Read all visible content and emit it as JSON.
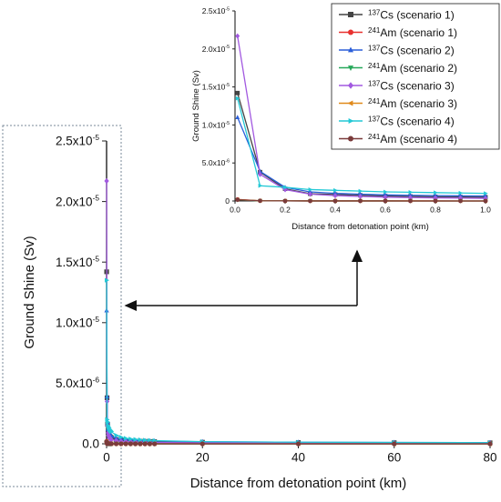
{
  "chart_data": [
    {
      "type": "line",
      "xlabel": "Distance from detonation point (km)",
      "ylabel": "Ground Shine (Sv)",
      "xlim": [
        0,
        80
      ],
      "ylim": [
        0,
        2.5e-05
      ],
      "xticks": [
        "0",
        "20",
        "40",
        "60",
        "80"
      ],
      "yticks": [
        "0.0",
        "5.0x10",
        "1.0x10",
        "1.5x10",
        "2.0x10",
        "2.5x10"
      ],
      "ytick_exp": [
        "",
        "-6",
        "-5",
        "-5",
        "-5",
        "-5"
      ],
      "x": [
        0.01,
        0.1,
        0.2,
        0.3,
        0.4,
        0.5,
        0.6,
        0.7,
        0.8,
        0.9,
        1,
        2,
        3,
        4,
        5,
        6,
        7,
        8,
        9,
        10,
        20,
        40,
        60,
        80
      ],
      "series": [
        {
          "name": "Cs (scenario 1)",
          "iso": "137",
          "color": "#444444",
          "marker": "square",
          "values": [
            1.42e-05,
            3.8e-06,
            1.6e-06,
            9.5e-07,
            8.5e-07,
            7.5e-07,
            6.5e-07,
            6e-07,
            5.5e-07,
            5.2e-07,
            5e-07,
            3.5e-07,
            3e-07,
            2.6e-07,
            2.4e-07,
            2.2e-07,
            2.1e-07,
            2e-07,
            1.9e-07,
            1.8e-07,
            1.3e-07,
            1e-07,
            9e-08,
            8e-08
          ]
        },
        {
          "name": "Am (scenario 1)",
          "iso": "241",
          "color": "#e8312f",
          "marker": "circle",
          "values": [
            2e-07,
            3e-08,
            1.5e-08,
            1e-08,
            8e-09,
            7e-09,
            6e-09,
            5e-09,
            5e-09,
            4e-09,
            4e-09,
            3e-09,
            2e-09,
            2e-09,
            2e-09,
            2e-09,
            1e-09,
            1e-09,
            1e-09,
            1e-09,
            1e-09,
            1e-09,
            1e-09,
            1e-09
          ]
        },
        {
          "name": "Cs (scenario 2)",
          "iso": "137",
          "color": "#2b5fd9",
          "marker": "triangle-up",
          "values": [
            1.1e-05,
            3.9e-06,
            1.8e-06,
            1.2e-06,
            1e-06,
            9e-07,
            8e-07,
            7.5e-07,
            7e-07,
            6.8e-07,
            6.5e-07,
            4.5e-07,
            3.8e-07,
            3.3e-07,
            3e-07,
            2.8e-07,
            2.6e-07,
            2.5e-07,
            2.4e-07,
            2.3e-07,
            1.7e-07,
            1.3e-07,
            1.1e-07,
            1e-07
          ]
        },
        {
          "name": "Am (scenario 2)",
          "iso": "241",
          "color": "#27a85a",
          "marker": "triangle-down",
          "values": [
            1.5e-07,
            2.5e-08,
            1.2e-08,
            8e-09,
            7e-09,
            6e-09,
            5e-09,
            4e-09,
            4e-09,
            3e-09,
            3e-09,
            2e-09,
            2e-09,
            2e-09,
            1e-09,
            1e-09,
            1e-09,
            1e-09,
            1e-09,
            1e-09,
            1e-09,
            1e-09,
            1e-09,
            1e-09
          ]
        },
        {
          "name": "Cs (scenario 3)",
          "iso": "137",
          "color": "#a259e0",
          "marker": "diamond",
          "values": [
            2.17e-05,
            3.5e-06,
            1.5e-06,
            9e-07,
            7e-07,
            6e-07,
            5e-07,
            4.5e-07,
            4e-07,
            3.8e-07,
            3.5e-07,
            2.5e-07,
            2e-07,
            1.8e-07,
            1.6e-07,
            1.5e-07,
            1.4e-07,
            1.3e-07,
            1.2e-07,
            1.1e-07,
            8e-08,
            6e-08,
            5e-08,
            4e-08
          ]
        },
        {
          "name": "Am (scenario 3)",
          "iso": "241",
          "color": "#e0891a",
          "marker": "triangle-left",
          "values": [
            1.8e-07,
            2.8e-08,
            1.3e-08,
            9e-09,
            7e-09,
            6e-09,
            5e-09,
            5e-09,
            4e-09,
            4e-09,
            3e-09,
            2e-09,
            2e-09,
            2e-09,
            1e-09,
            1e-09,
            1e-09,
            1e-09,
            1e-09,
            1e-09,
            1e-09,
            1e-09,
            1e-09,
            1e-09
          ]
        },
        {
          "name": "Cs (scenario 4)",
          "iso": "137",
          "color": "#23c9d6",
          "marker": "triangle-right",
          "values": [
            1.35e-05,
            2e-06,
            1.8e-06,
            1.5e-06,
            1.4e-06,
            1.3e-06,
            1.2e-06,
            1.15e-06,
            1.1e-06,
            1.05e-06,
            1e-06,
            7e-07,
            5.5e-07,
            4.5e-07,
            4e-07,
            3.6e-07,
            3.3e-07,
            3e-07,
            2.8e-07,
            2.6e-07,
            1.8e-07,
            1.3e-07,
            1.1e-07,
            1e-07
          ]
        },
        {
          "name": "Am (scenario 4)",
          "iso": "241",
          "color": "#7a3b3b",
          "marker": "circle",
          "values": [
            1.6e-07,
            2.6e-08,
            1.2e-08,
            8e-09,
            7e-09,
            6e-09,
            5e-09,
            4e-09,
            4e-09,
            3e-09,
            3e-09,
            2e-09,
            2e-09,
            2e-09,
            1e-09,
            1e-09,
            1e-09,
            1e-09,
            1e-09,
            1e-09,
            1e-09,
            1e-09,
            1e-09,
            1e-09
          ]
        }
      ]
    },
    {
      "type": "line",
      "xlabel": "Distance from detonation point (km)",
      "ylabel": "Ground Shine (Sv)",
      "xlim": [
        0,
        1.0
      ],
      "ylim": [
        0,
        2.5e-05
      ],
      "xticks": [
        "0.0",
        "0.2",
        "0.4",
        "0.6",
        "0.8",
        "1.0"
      ],
      "yticks": [
        "0",
        "5.0x10",
        "1.0x10",
        "1.5x10",
        "2.0x10",
        "2.5x10"
      ],
      "ytick_exp": [
        "",
        "-6",
        "-5",
        "-5",
        "-5",
        "-5"
      ],
      "legend_position": "top-right"
    }
  ]
}
